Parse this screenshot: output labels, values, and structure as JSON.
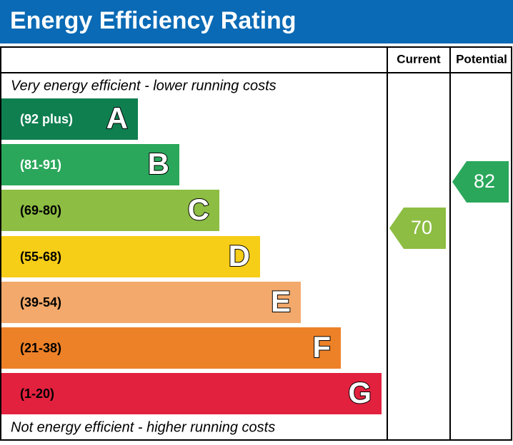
{
  "header": {
    "title": "Energy Efficiency Rating"
  },
  "columns": [
    "Current",
    "Potential"
  ],
  "top_note": "Very energy efficient - lower running costs",
  "bottom_note": "Not energy efficient - higher running costs",
  "bands": [
    {
      "range": "(92 plus)",
      "letter": "A",
      "color": "#0f7f50"
    },
    {
      "range": "(81-91)",
      "letter": "B",
      "color": "#2aa75b"
    },
    {
      "range": "(69-80)",
      "letter": "C",
      "color": "#8dbd43"
    },
    {
      "range": "(55-68)",
      "letter": "D",
      "color": "#f6cd17"
    },
    {
      "range": "(39-54)",
      "letter": "E",
      "color": "#f2a96b"
    },
    {
      "range": "(21-38)",
      "letter": "F",
      "color": "#ed8128"
    },
    {
      "range": "(1-20)",
      "letter": "G",
      "color": "#e2213e"
    }
  ],
  "current": {
    "value": 70,
    "color": "#8dbd43"
  },
  "potential": {
    "value": 82,
    "color": "#2aa75b"
  }
}
